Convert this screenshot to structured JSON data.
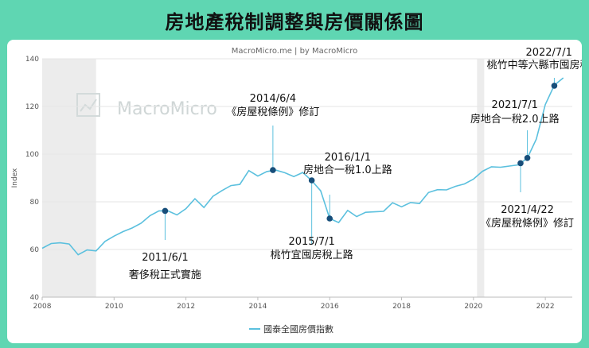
{
  "title": "房地產稅制調整與房價關係圖",
  "source": "MacroMicro.me | by MacroMicro",
  "watermark": "MacroMicro",
  "chart_data": {
    "type": "line",
    "ylabel": "Index",
    "ylim": [
      40,
      140
    ],
    "yticks": [
      40,
      60,
      80,
      100,
      120,
      140
    ],
    "xlim": [
      2008,
      2022.75
    ],
    "xticks": [
      2008,
      2010,
      2012,
      2014,
      2016,
      2018,
      2020,
      2022
    ],
    "shaded_ranges": [
      [
        2008,
        2009.5
      ],
      [
        2020.1,
        2020.3
      ]
    ],
    "series": [
      {
        "name": "國泰全國房價指數",
        "color": "#5bc0de",
        "x": [
          2008.0,
          2008.25,
          2008.5,
          2008.75,
          2009.0,
          2009.25,
          2009.5,
          2009.75,
          2010.0,
          2010.25,
          2010.5,
          2010.75,
          2011.0,
          2011.25,
          2011.5,
          2011.75,
          2012.0,
          2012.25,
          2012.5,
          2012.75,
          2013.0,
          2013.25,
          2013.5,
          2013.75,
          2014.0,
          2014.25,
          2014.5,
          2014.75,
          2015.0,
          2015.25,
          2015.5,
          2015.75,
          2016.0,
          2016.25,
          2016.5,
          2016.75,
          2017.0,
          2017.25,
          2017.5,
          2017.75,
          2018.0,
          2018.25,
          2018.5,
          2018.75,
          2019.0,
          2019.25,
          2019.5,
          2019.75,
          2020.0,
          2020.25,
          2020.5,
          2020.75,
          2021.0,
          2021.25,
          2021.5,
          2021.75,
          2022.0,
          2022.25,
          2022.5
        ],
        "values": [
          60.5,
          62.5,
          62.8,
          62.3,
          57.8,
          59.8,
          59.4,
          63.4,
          65.6,
          67.5,
          69.0,
          71.0,
          74.2,
          76.2,
          76.2,
          74.5,
          77.1,
          81.3,
          77.6,
          82.3,
          84.7,
          86.8,
          87.3,
          93.1,
          90.8,
          92.7,
          93.3,
          92.2,
          90.6,
          92.3,
          88.9,
          84.6,
          73.0,
          71.3,
          76.4,
          73.8,
          75.6,
          75.8,
          76.0,
          79.6,
          77.9,
          79.7,
          79.3,
          83.9,
          85.1,
          85.0,
          86.5,
          87.5,
          89.5,
          92.8,
          94.7,
          94.5,
          95.0,
          95.5,
          98.4,
          106.3,
          120.8,
          128.9,
          132.0
        ]
      }
    ],
    "points": [
      {
        "x": 2011.42,
        "y": 76.2
      },
      {
        "x": 2014.42,
        "y": 93.3
      },
      {
        "x": 2015.5,
        "y": 89.0
      },
      {
        "x": 2016.0,
        "y": 73.0
      },
      {
        "x": 2021.31,
        "y": 96.2
      },
      {
        "x": 2021.5,
        "y": 98.4
      },
      {
        "x": 2022.25,
        "y": 128.7
      }
    ],
    "annotations": [
      {
        "lines": [
          "2011/6/1",
          "奢侈稅正式實施"
        ],
        "x": 2011.42,
        "y": 76.2
      },
      {
        "lines": [
          "2014/6/4",
          "《房屋稅條例》修訂"
        ],
        "x": 2014.42,
        "y": 93.3
      },
      {
        "lines": [
          "2015/7/1",
          "桃竹宜囤房稅上路"
        ],
        "x": 2015.5,
        "y": 89.0
      },
      {
        "lines": [
          "2016/1/1",
          "房地合一稅1.0上路"
        ],
        "x": 2016.0,
        "y": 73.0
      },
      {
        "lines": [
          "2021/4/22",
          "《房屋稅條例》修訂"
        ],
        "x": 2021.31,
        "y": 96.2
      },
      {
        "lines": [
          "2021/7/1",
          "房地合一稅2.0上路"
        ],
        "x": 2021.5,
        "y": 98.4
      },
      {
        "lines": [
          "2022/7/1",
          "桃竹中等六縣市囤房稅上路"
        ],
        "x": 2022.25,
        "y": 128.7
      }
    ],
    "legend": "bottom-center"
  }
}
